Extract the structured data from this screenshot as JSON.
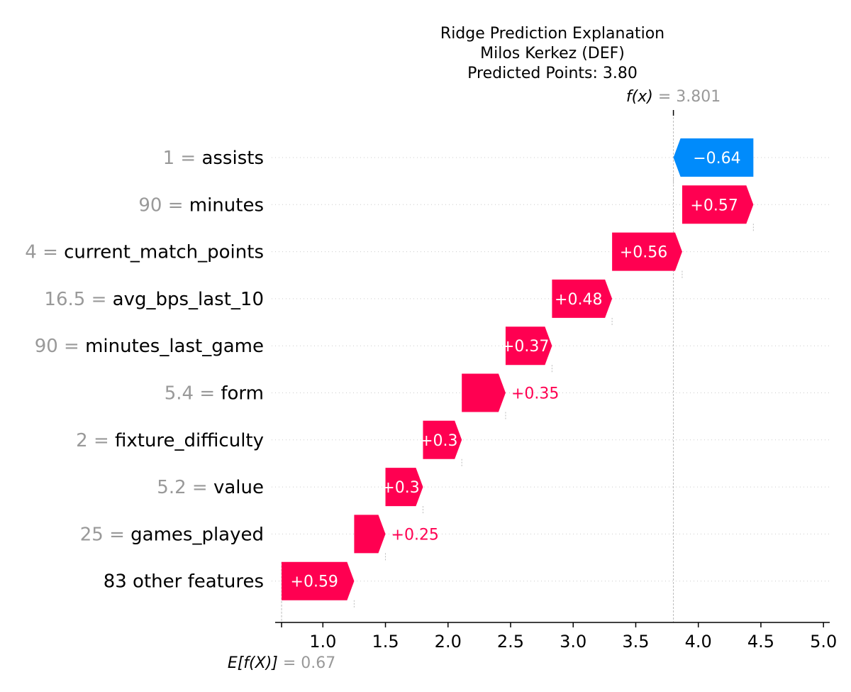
{
  "chart_data": {
    "type": "waterfall",
    "title": [
      "Ridge Prediction Explanation",
      "Milos Kerkez (DEF)",
      "Predicted Points: 3.80"
    ],
    "base_value": 0.67,
    "base_label_math": "E[f(X)]",
    "base_label_value": "= 0.67",
    "output_value": 3.801,
    "output_label_math": "f(x)",
    "output_label_value": "= 3.801",
    "xlim": [
      0.63,
      5.05
    ],
    "xticks": [
      1.0,
      1.5,
      2.0,
      2.5,
      3.0,
      3.5,
      4.0,
      4.5,
      5.0
    ],
    "xtick_labels": [
      "1.0",
      "1.5",
      "2.0",
      "2.5",
      "3.0",
      "3.5",
      "4.0",
      "4.5",
      "5.0"
    ],
    "features": [
      {
        "value": "1",
        "name": "assists",
        "start": 4.44,
        "end": 3.801,
        "label": "−0.64",
        "label_inside": true
      },
      {
        "value": "90",
        "name": "minutes",
        "start": 3.871,
        "end": 4.44,
        "label": "+0.57",
        "label_inside": true
      },
      {
        "value": "4",
        "name": "current_match_points",
        "start": 3.311,
        "end": 3.871,
        "label": "+0.56",
        "label_inside": true
      },
      {
        "value": "16.5",
        "name": "avg_bps_last_10",
        "start": 2.831,
        "end": 3.311,
        "label": "+0.48",
        "label_inside": true
      },
      {
        "value": "90",
        "name": "minutes_last_game",
        "start": 2.46,
        "end": 2.831,
        "label": "+0.37",
        "label_inside": true
      },
      {
        "value": "5.4",
        "name": "form",
        "start": 2.11,
        "end": 2.46,
        "label": "+0.35",
        "label_inside": false
      },
      {
        "value": "2",
        "name": "fixture_difficulty",
        "start": 1.8,
        "end": 2.11,
        "label": "+0.3",
        "label_inside": true
      },
      {
        "value": "5.2",
        "name": "value",
        "start": 1.5,
        "end": 1.8,
        "label": "+0.3",
        "label_inside": true
      },
      {
        "value": "25",
        "name": "games_played",
        "start": 1.25,
        "end": 1.5,
        "label": "+0.25",
        "label_inside": false
      },
      {
        "value": "",
        "name": "83 other features",
        "start": 0.67,
        "end": 1.25,
        "label": "+0.59",
        "label_inside": true
      }
    ],
    "colors": {
      "positive": "#ff0051",
      "negative": "#008bfb",
      "feature_value": "#999999",
      "grid": "#cccccc",
      "axis": "#000000"
    },
    "grid": true
  }
}
